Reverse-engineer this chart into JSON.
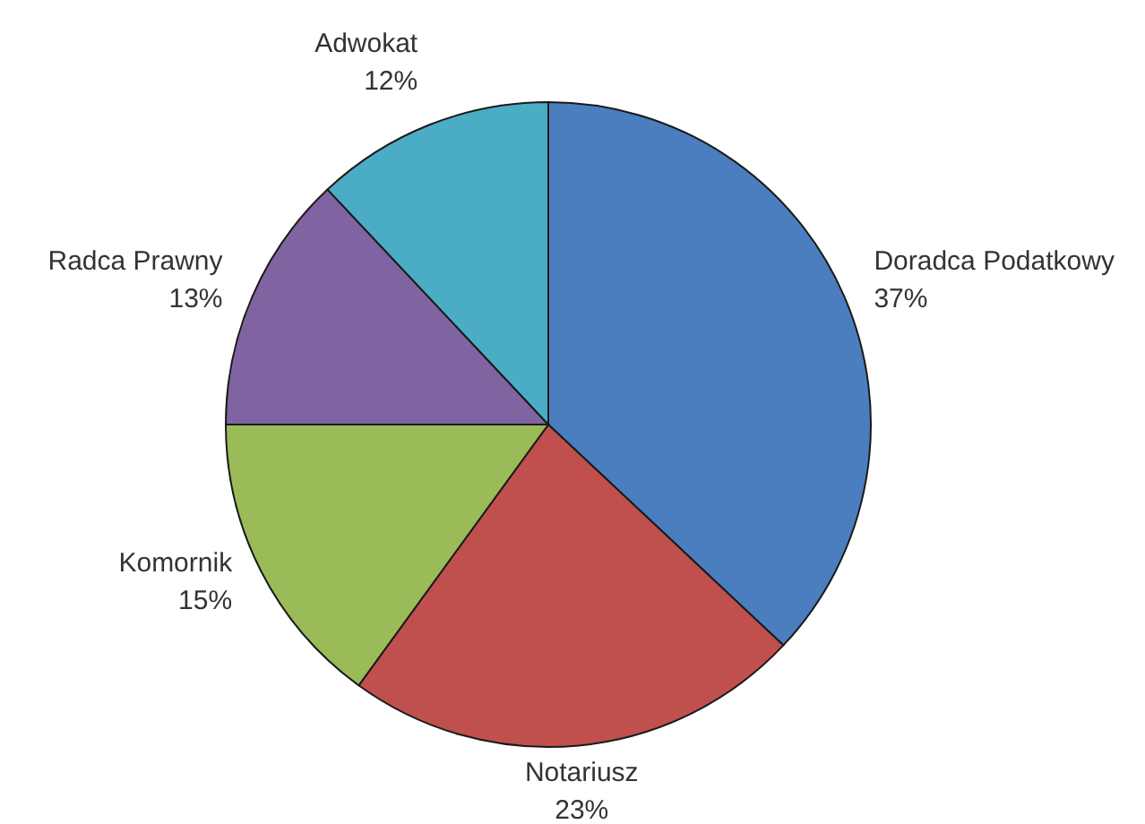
{
  "chart_data": {
    "type": "pie",
    "categories": [
      "Doradca Podatkowy",
      "Notariusz",
      "Komornik",
      "Radca Prawny",
      "Adwokat"
    ],
    "values": [
      37,
      23,
      15,
      13,
      12
    ],
    "value_labels": [
      "37%",
      "23%",
      "15%",
      "13%",
      "12%"
    ],
    "colors": [
      "#4a7ebf",
      "#c0504d",
      "#9bbb59",
      "#8064a2",
      "#4bacc6"
    ],
    "legend": false
  }
}
